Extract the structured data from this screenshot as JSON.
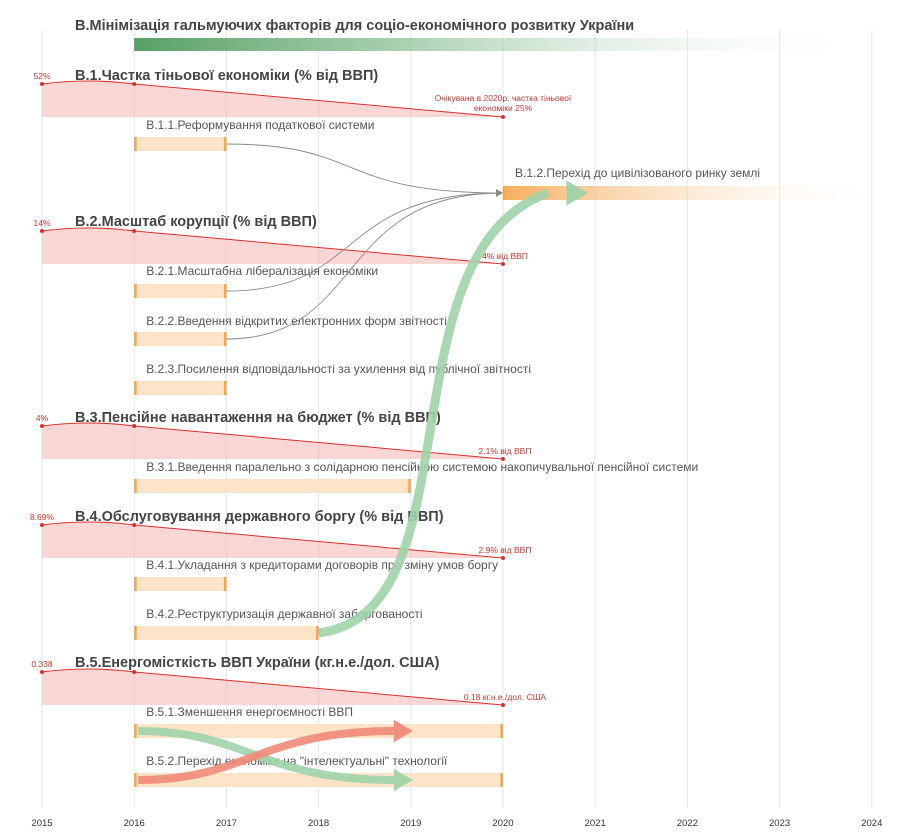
{
  "chart_data": {
    "type": "gantt",
    "title": "В.Мінімізація гальмуючих факторів для соціо-економічного розвитку України",
    "x_axis": {
      "ticks": [
        2015,
        2016,
        2017,
        2018,
        2019,
        2020,
        2021,
        2022,
        2023,
        2024
      ],
      "range": [
        2015,
        2024
      ],
      "grid": true
    },
    "colors": {
      "indicator": "#d8302c",
      "task": "#f5a54a",
      "title_bar": "#4e9a5c",
      "link_green": "#9fd3a8",
      "link_red": "#f08a78",
      "link_gray": "#8a8a8a"
    },
    "indicators": [
      {
        "id": "B1",
        "title": "В.1.Частка тіньової економіки (% від ВВП)",
        "start_label": "52%",
        "end_label": "Очікувана в 2020р. частка тіньової економіки 25%",
        "end_label_lines": [
          "Очікувана в 2020р. частка тіньової",
          "економіки 25%"
        ],
        "start_value": 52,
        "end_value": 25,
        "points": [
          [
            2015,
            52
          ],
          [
            2016,
            52
          ],
          [
            2020,
            25
          ]
        ],
        "tasks": [
          {
            "id": "B11",
            "label": "В.1.1.Реформування податкової системи",
            "start": 2016,
            "end": 2017
          },
          {
            "id": "B12",
            "label": "В.1.2.Перехід до цивілізованого ринку землі",
            "start": 2020,
            "end": 2024
          }
        ]
      },
      {
        "id": "B2",
        "title": "В.2.Масштаб корупції (% від ВВП)",
        "start_label": "14%",
        "end_label": "4% від ВВП",
        "start_value": 14,
        "end_value": 4,
        "points": [
          [
            2015,
            14
          ],
          [
            2016,
            14
          ],
          [
            2020,
            4
          ]
        ],
        "tasks": [
          {
            "id": "B21",
            "label": "В.2.1.Масштабна лібералізація економіки",
            "start": 2016,
            "end": 2017
          },
          {
            "id": "B22",
            "label": "В.2.2.Введення відкритих електронних форм звітності",
            "start": 2016,
            "end": 2017
          },
          {
            "id": "B23",
            "label": "В.2.3.Посилення відповідальності за ухилення від публічної звітності",
            "start": 2016,
            "end": 2017
          }
        ]
      },
      {
        "id": "B3",
        "title": "В.3.Пенсійне навантаження на бюджет (% від ВВП)",
        "start_label": "4%",
        "end_label": "2.1% від ВВП",
        "start_value": 4,
        "end_value": 2.1,
        "points": [
          [
            2015,
            4
          ],
          [
            2016,
            4
          ],
          [
            2020,
            2.1
          ]
        ],
        "tasks": [
          {
            "id": "B31",
            "label": "В.3.1.Введення паралельно з солідарною пенсійною системою накопичувальної пенсійної системи",
            "start": 2016,
            "end": 2019
          }
        ]
      },
      {
        "id": "B4",
        "title": "В.4.Обслуговування державного боргу (% від ВВП)",
        "start_label": "8.69%",
        "end_label": "2.9% від ВВП",
        "start_value": 8.69,
        "end_value": 2.9,
        "points": [
          [
            2015,
            8.69
          ],
          [
            2016,
            8.69
          ],
          [
            2020,
            2.9
          ]
        ],
        "tasks": [
          {
            "id": "B41",
            "label": "В.4.1.Укладання з кредиторами договорів про зміну умов боргу",
            "start": 2016,
            "end": 2017
          },
          {
            "id": "B42",
            "label": "В.4.2.Реструктуризація державної заборгованості",
            "start": 2016,
            "end": 2018
          }
        ]
      },
      {
        "id": "B5",
        "title": "В.5.Енергомісткість ВВП України (кг.н.е./дол. США)",
        "start_label": "0.338",
        "end_label": "0.18 кг.н.е./дол. США",
        "start_value": 0.338,
        "end_value": 0.18,
        "points": [
          [
            2015,
            0.338
          ],
          [
            2016,
            0.338
          ],
          [
            2020,
            0.18
          ]
        ],
        "tasks": [
          {
            "id": "B51",
            "label": "В.5.1.Зменшення енергоємності ВВП",
            "start": 2016,
            "end": 2020
          },
          {
            "id": "B52",
            "label": "В.5.2.Перехід економіки на \"інтелектуальні\" технології",
            "start": 2016,
            "end": 2020
          }
        ]
      }
    ],
    "links": [
      {
        "from": "B11",
        "to": "B12",
        "color": "gray"
      },
      {
        "from": "B21",
        "to": "B12",
        "color": "gray"
      },
      {
        "from": "B22",
        "to": "B12",
        "color": "gray"
      },
      {
        "from": "B42",
        "to": "B12",
        "color": "green"
      },
      {
        "from": "B51",
        "to": "B52",
        "color": "green"
      },
      {
        "from": "B52",
        "to": "B51",
        "color": "red"
      }
    ]
  }
}
